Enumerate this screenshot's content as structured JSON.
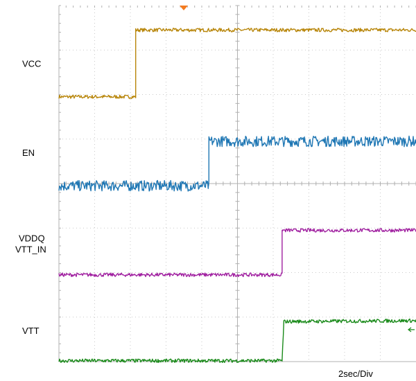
{
  "chart_data": {
    "type": "line",
    "title": "",
    "xlabel": "",
    "ylabel": "",
    "time_scale_label": "2sec/Div",
    "divisions": {
      "horizontal": 10,
      "vertical": 8
    },
    "xlim": [
      0,
      10
    ],
    "ylim": [
      0,
      8
    ],
    "grid": true,
    "trigger_marker_color": "#f47b20",
    "series": [
      {
        "name": "VCC",
        "label_lines": [
          "VCC"
        ],
        "color": "#b8860b",
        "label_y": 6.7,
        "x": [
          0,
          2.15,
          2.15,
          10
        ],
        "y": [
          5.95,
          5.95,
          7.45,
          7.45
        ],
        "noise": 0.04
      },
      {
        "name": "EN",
        "label_lines": [
          "EN"
        ],
        "color": "#1f77b4",
        "label_y": 4.7,
        "x": [
          0,
          4.2,
          4.2,
          10
        ],
        "y": [
          3.95,
          3.95,
          4.95,
          4.95
        ],
        "noise": 0.12
      },
      {
        "name": "VDDQ VTT_IN",
        "label_lines": [
          "VDDQ",
          "VTT_IN"
        ],
        "color": "#a020a0",
        "label_y": 2.65,
        "x": [
          0,
          6.25,
          6.25,
          10
        ],
        "y": [
          1.95,
          1.95,
          2.95,
          2.95
        ],
        "noise": 0.04
      },
      {
        "name": "VTT",
        "label_lines": [
          "VTT"
        ],
        "color": "#1a8a1a",
        "label_y": 0.7,
        "x": [
          0,
          6.25,
          6.3,
          10
        ],
        "y": [
          0.02,
          0.02,
          0.9,
          0.92
        ],
        "noise": 0.04
      }
    ]
  }
}
